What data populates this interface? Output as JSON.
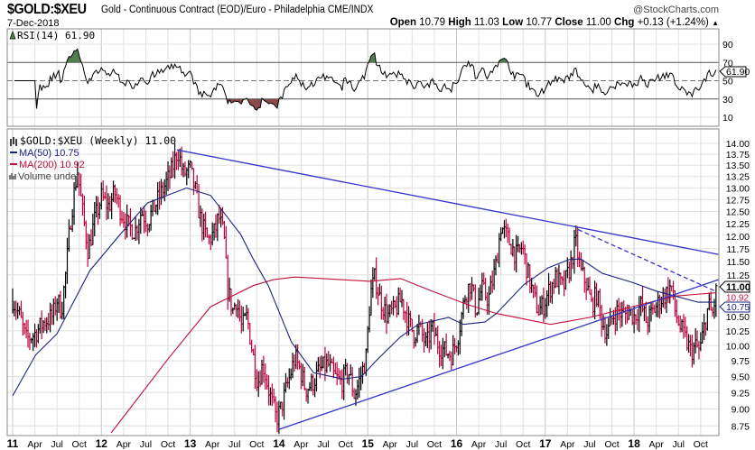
{
  "header": {
    "symbol": "$GOLD:$XEU",
    "description": "Gold - Continuous Contract (EOD)/Euro - Philadelphia CME/INDX",
    "date": "7-Dec-2018",
    "brand": "@StockCharts.com",
    "open_label": "Open",
    "open": "10.79",
    "high_label": "High",
    "high": "11.03",
    "low_label": "Low",
    "low": "10.77",
    "close_label": "Close",
    "close": "11.00",
    "chg_label": "Chg",
    "chg": "+0.13 (+1.24%)",
    "chg_icon": "up-triangle-icon"
  },
  "rsi_panel": {
    "legend": "RSI(14) 61.90",
    "current": "61.90",
    "ticks": [
      "90",
      "70",
      "50",
      "30",
      "10"
    ],
    "overbought": 70,
    "oversold": 30,
    "colors": {
      "line": "#000000",
      "overbought_fill": "#4f7f4f",
      "oversold_fill": "#8b4a4a"
    }
  },
  "price_panel": {
    "legend_title": "$GOLD:$XEU (Weekly) 11.00",
    "legend_ma50": "MA(50) 10.75",
    "legend_ma200": "MA(200) 10.92",
    "legend_volume": "Volume undef",
    "last_close_tag": "11.00",
    "ma200_tag": "10.92",
    "ma50_tag": "10.75",
    "colors": {
      "up": "#000000",
      "down": "#c0003a",
      "ma50": "#1a237e",
      "ma200": "#c0103a",
      "trend": "#3333cc"
    }
  },
  "chart_data": {
    "type": "ohlc",
    "title": "$GOLD:$XEU (Weekly)",
    "yscale": "log",
    "ylim": [
      8.6,
      14.4
    ],
    "y_ticks": [
      "14.00",
      "13.75",
      "13.50",
      "13.25",
      "13.00",
      "12.75",
      "12.50",
      "12.25",
      "12.00",
      "11.75",
      "11.50",
      "11.25",
      "10.50",
      "10.25",
      "10.00",
      "9.75",
      "9.50",
      "9.25",
      "9.00",
      "8.75"
    ],
    "x_ticks": [
      {
        "t": 2011,
        "label": "11",
        "major": true
      },
      {
        "t": 2011.25,
        "label": "Apr"
      },
      {
        "t": 2011.5,
        "label": "Jul"
      },
      {
        "t": 2011.75,
        "label": "Oct"
      },
      {
        "t": 2012,
        "label": "12",
        "major": true
      },
      {
        "t": 2012.25,
        "label": "Apr"
      },
      {
        "t": 2012.5,
        "label": "Jul"
      },
      {
        "t": 2012.75,
        "label": "Oct"
      },
      {
        "t": 2013,
        "label": "13",
        "major": true
      },
      {
        "t": 2013.25,
        "label": "Apr"
      },
      {
        "t": 2013.5,
        "label": "Jul"
      },
      {
        "t": 2013.75,
        "label": "Oct"
      },
      {
        "t": 2014,
        "label": "14",
        "major": true
      },
      {
        "t": 2014.25,
        "label": "Apr"
      },
      {
        "t": 2014.5,
        "label": "Jul"
      },
      {
        "t": 2014.75,
        "label": "Oct"
      },
      {
        "t": 2015,
        "label": "15",
        "major": true
      },
      {
        "t": 2015.25,
        "label": "Apr"
      },
      {
        "t": 2015.5,
        "label": "Jul"
      },
      {
        "t": 2015.75,
        "label": "Oct"
      },
      {
        "t": 2016,
        "label": "16",
        "major": true
      },
      {
        "t": 2016.25,
        "label": "Apr"
      },
      {
        "t": 2016.5,
        "label": "Jul"
      },
      {
        "t": 2016.75,
        "label": "Oct"
      },
      {
        "t": 2017,
        "label": "17",
        "major": true
      },
      {
        "t": 2017.25,
        "label": "Apr"
      },
      {
        "t": 2017.5,
        "label": "Jul"
      },
      {
        "t": 2017.75,
        "label": "Oct"
      },
      {
        "t": 2018,
        "label": "18",
        "major": true
      },
      {
        "t": 2018.25,
        "label": "Apr"
      },
      {
        "t": 2018.5,
        "label": "Jul"
      },
      {
        "t": 2018.75,
        "label": "Oct"
      }
    ],
    "close_path": [
      [
        2011.0,
        10.8
      ],
      [
        2011.08,
        10.5
      ],
      [
        2011.15,
        10.1
      ],
      [
        2011.25,
        10.2
      ],
      [
        2011.35,
        10.4
      ],
      [
        2011.45,
        10.5
      ],
      [
        2011.5,
        10.8
      ],
      [
        2011.55,
        10.6
      ],
      [
        2011.6,
        11.3
      ],
      [
        2011.65,
        12.3
      ],
      [
        2011.7,
        13.0
      ],
      [
        2011.73,
        13.4
      ],
      [
        2011.78,
        12.6
      ],
      [
        2011.85,
        11.7
      ],
      [
        2011.92,
        12.3
      ],
      [
        2012.0,
        12.8
      ],
      [
        2012.08,
        12.6
      ],
      [
        2012.15,
        12.9
      ],
      [
        2012.22,
        12.5
      ],
      [
        2012.3,
        12.2
      ],
      [
        2012.38,
        12.1
      ],
      [
        2012.45,
        12.5
      ],
      [
        2012.52,
        12.3
      ],
      [
        2012.6,
        12.6
      ],
      [
        2012.7,
        13.0
      ],
      [
        2012.78,
        13.3
      ],
      [
        2012.86,
        13.85
      ],
      [
        2012.92,
        13.3
      ],
      [
        2013.0,
        13.4
      ],
      [
        2013.06,
        12.9
      ],
      [
        2013.12,
        12.3
      ],
      [
        2013.2,
        11.9
      ],
      [
        2013.28,
        12.1
      ],
      [
        2013.32,
        12.4
      ],
      [
        2013.38,
        12.0
      ],
      [
        2013.42,
        11.0
      ],
      [
        2013.48,
        10.6
      ],
      [
        2013.52,
        10.8
      ],
      [
        2013.58,
        10.3
      ],
      [
        2013.64,
        10.5
      ],
      [
        2013.7,
        9.9
      ],
      [
        2013.76,
        9.4
      ],
      [
        2013.82,
        9.7
      ],
      [
        2013.9,
        9.2
      ],
      [
        2013.97,
        8.85
      ],
      [
        2014.02,
        9.0
      ],
      [
        2014.1,
        9.4
      ],
      [
        2014.18,
        9.8
      ],
      [
        2014.24,
        9.6
      ],
      [
        2014.3,
        9.3
      ],
      [
        2014.38,
        9.4
      ],
      [
        2014.46,
        9.6
      ],
      [
        2014.55,
        9.7
      ],
      [
        2014.62,
        9.5
      ],
      [
        2014.7,
        9.4
      ],
      [
        2014.78,
        9.6
      ],
      [
        2014.85,
        9.2
      ],
      [
        2014.92,
        9.5
      ],
      [
        2014.98,
        9.8
      ],
      [
        2015.03,
        10.9
      ],
      [
        2015.08,
        11.2
      ],
      [
        2015.14,
        10.8
      ],
      [
        2015.22,
        10.5
      ],
      [
        2015.3,
        10.6
      ],
      [
        2015.38,
        10.8
      ],
      [
        2015.46,
        10.4
      ],
      [
        2015.52,
        10.2
      ],
      [
        2015.58,
        10.3
      ],
      [
        2015.66,
        10.0
      ],
      [
        2015.72,
        10.3
      ],
      [
        2015.8,
        10.0
      ],
      [
        2015.88,
        9.9
      ],
      [
        2015.95,
        9.85
      ],
      [
        2016.02,
        10.2
      ],
      [
        2016.1,
        10.9
      ],
      [
        2016.16,
        11.1
      ],
      [
        2016.22,
        10.6
      ],
      [
        2016.28,
        11.0
      ],
      [
        2016.36,
        10.8
      ],
      [
        2016.44,
        11.4
      ],
      [
        2016.5,
        12.2
      ],
      [
        2016.56,
        12.0
      ],
      [
        2016.62,
        11.8
      ],
      [
        2016.68,
        11.6
      ],
      [
        2016.74,
        11.8
      ],
      [
        2016.8,
        11.3
      ],
      [
        2016.86,
        10.9
      ],
      [
        2016.92,
        10.6
      ],
      [
        2016.98,
        10.7
      ],
      [
        2017.05,
        11.0
      ],
      [
        2017.12,
        11.2
      ],
      [
        2017.2,
        11.0
      ],
      [
        2017.28,
        11.4
      ],
      [
        2017.34,
        11.9
      ],
      [
        2017.4,
        11.3
      ],
      [
        2017.46,
        11.1
      ],
      [
        2017.52,
        10.7
      ],
      [
        2017.58,
        10.9
      ],
      [
        2017.64,
        10.4
      ],
      [
        2017.7,
        10.2
      ],
      [
        2017.76,
        10.5
      ],
      [
        2017.82,
        10.6
      ],
      [
        2017.88,
        10.5
      ],
      [
        2017.94,
        10.6
      ],
      [
        2018.0,
        10.5
      ],
      [
        2018.08,
        10.7
      ],
      [
        2018.14,
        10.4
      ],
      [
        2018.22,
        10.6
      ],
      [
        2018.3,
        10.8
      ],
      [
        2018.36,
        10.9
      ],
      [
        2018.42,
        11.05
      ],
      [
        2018.46,
        10.6
      ],
      [
        2018.52,
        10.3
      ],
      [
        2018.58,
        10.1
      ],
      [
        2018.64,
        9.9
      ],
      [
        2018.7,
        10.0
      ],
      [
        2018.74,
        9.9
      ],
      [
        2018.8,
        10.4
      ],
      [
        2018.84,
        10.7
      ],
      [
        2018.88,
        10.5
      ],
      [
        2018.93,
        11.0
      ]
    ],
    "ma50": [
      [
        2011.0,
        9.2
      ],
      [
        2011.26,
        9.85
      ],
      [
        2011.5,
        10.2
      ],
      [
        2011.87,
        11.33
      ],
      [
        2012.21,
        12.03
      ],
      [
        2012.52,
        12.68
      ],
      [
        2012.96,
        13.0
      ],
      [
        2013.23,
        12.84
      ],
      [
        2013.57,
        12.03
      ],
      [
        2013.71,
        11.55
      ],
      [
        2013.88,
        11.05
      ],
      [
        2014.14,
        10.06
      ],
      [
        2014.39,
        9.56
      ],
      [
        2014.72,
        9.46
      ],
      [
        2014.93,
        9.5
      ],
      [
        2015.1,
        9.76
      ],
      [
        2015.37,
        10.15
      ],
      [
        2015.57,
        10.36
      ],
      [
        2015.91,
        10.48
      ],
      [
        2016.08,
        10.36
      ],
      [
        2016.32,
        10.4
      ],
      [
        2016.45,
        10.55
      ],
      [
        2016.76,
        11.07
      ],
      [
        2017.03,
        11.38
      ],
      [
        2017.27,
        11.54
      ],
      [
        2017.4,
        11.55
      ],
      [
        2017.64,
        11.28
      ],
      [
        2017.98,
        11.11
      ],
      [
        2018.25,
        10.95
      ],
      [
        2018.72,
        10.75
      ],
      [
        2018.93,
        10.75
      ]
    ],
    "ma200": [
      [
        2012.11,
        8.65
      ],
      [
        2012.76,
        9.8
      ],
      [
        2013.23,
        10.67
      ],
      [
        2013.71,
        11.05
      ],
      [
        2013.94,
        11.16
      ],
      [
        2014.18,
        11.21
      ],
      [
        2015.03,
        11.13
      ],
      [
        2015.37,
        11.18
      ],
      [
        2015.71,
        10.96
      ],
      [
        2016.12,
        10.71
      ],
      [
        2016.45,
        10.55
      ],
      [
        2017.06,
        10.36
      ],
      [
        2017.5,
        10.48
      ],
      [
        2017.98,
        10.67
      ],
      [
        2018.46,
        10.86
      ],
      [
        2018.93,
        10.92
      ]
    ],
    "trendlines": [
      {
        "name": "upper-resistance",
        "style": "solid",
        "points": [
          [
            2012.85,
            13.85
          ],
          [
            2018.95,
            11.64
          ]
        ]
      },
      {
        "name": "secondary-resistance",
        "style": "dashed",
        "points": [
          [
            2017.37,
            12.13
          ],
          [
            2018.9,
            10.96
          ]
        ]
      },
      {
        "name": "lower-support",
        "style": "solid",
        "points": [
          [
            2014.0,
            8.7
          ],
          [
            2018.95,
            11.16
          ]
        ]
      }
    ]
  }
}
